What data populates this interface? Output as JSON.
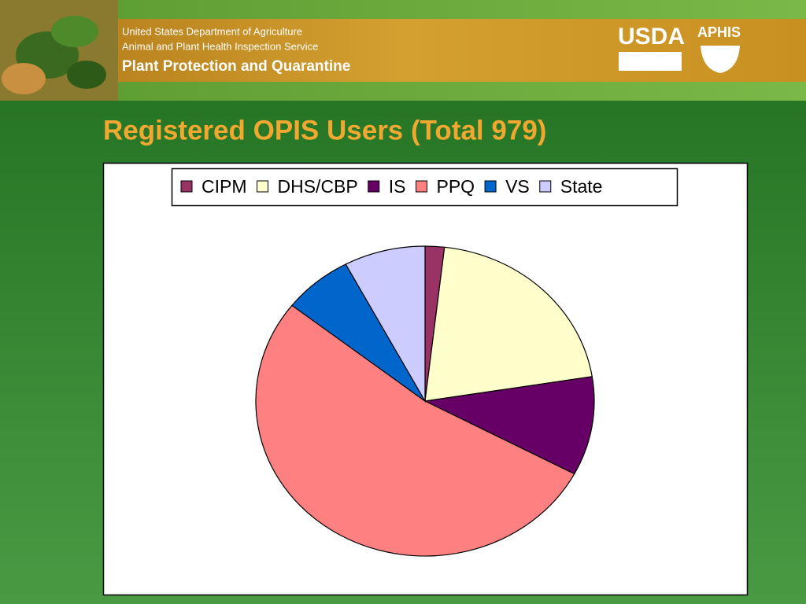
{
  "header": {
    "department": "United States Department of Agriculture",
    "service": "Animal and Plant Health Inspection Service",
    "program": "Plant Protection and Quarantine",
    "logo_usda": "USDA",
    "logo_aphis": "APHIS"
  },
  "chart_data": {
    "type": "pie",
    "title": "Registered OPIS Users (Total 979)",
    "categories": [
      "CIPM",
      "DHS/CBP",
      "IS",
      "PPQ",
      "VS",
      "State"
    ],
    "values": [
      18,
      202,
      101,
      517,
      65,
      76
    ],
    "colors": [
      "#993366",
      "#ffffcc",
      "#660066",
      "#ff8080",
      "#0066cc",
      "#ccccff"
    ],
    "legend": "top"
  }
}
